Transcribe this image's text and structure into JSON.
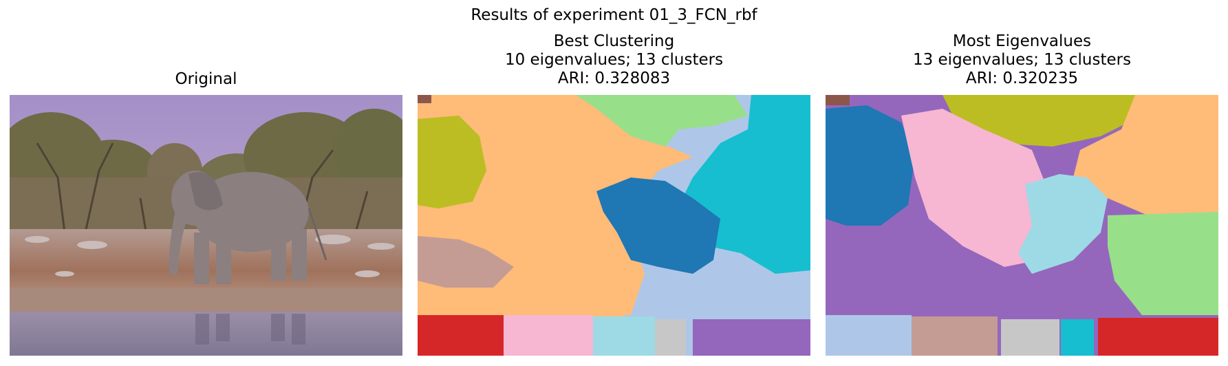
{
  "figure": {
    "title": "Results of experiment 01_3_FCN_rbf"
  },
  "panels": [
    {
      "title_lines": [
        "Original"
      ],
      "image": "photo of an elephant walking past a waterhole"
    },
    {
      "title_lines": [
        "Best Clustering",
        "10 eigenvalues; 13 clusters",
        "ARI: 0.328083"
      ],
      "image": "segmentation map with 13 colored clusters"
    },
    {
      "title_lines": [
        "Most Eigenvalues",
        "13 eigenvalues; 13 clusters",
        "ARI: 0.320235"
      ],
      "image": "segmentation map with 13 colored clusters"
    }
  ],
  "colors": {
    "sky": "#a996c9",
    "soil": "#9b6c55",
    "water": "#8f8aa3",
    "elephant": "#8c7f80",
    "c_blue": "#1f77b4",
    "c_lightblue": "#aec7e8",
    "c_orange": "#ffbb78",
    "c_green": "#98df8a",
    "c_red": "#d62728",
    "c_purple": "#9467bd",
    "c_brown": "#8c564b",
    "c_tan": "#c49c94",
    "c_pink": "#f7b6d2",
    "c_gray": "#c7c7c7",
    "c_olive": "#bcbd22",
    "c_cyan": "#17becf",
    "c_paleblue": "#9edae5"
  }
}
